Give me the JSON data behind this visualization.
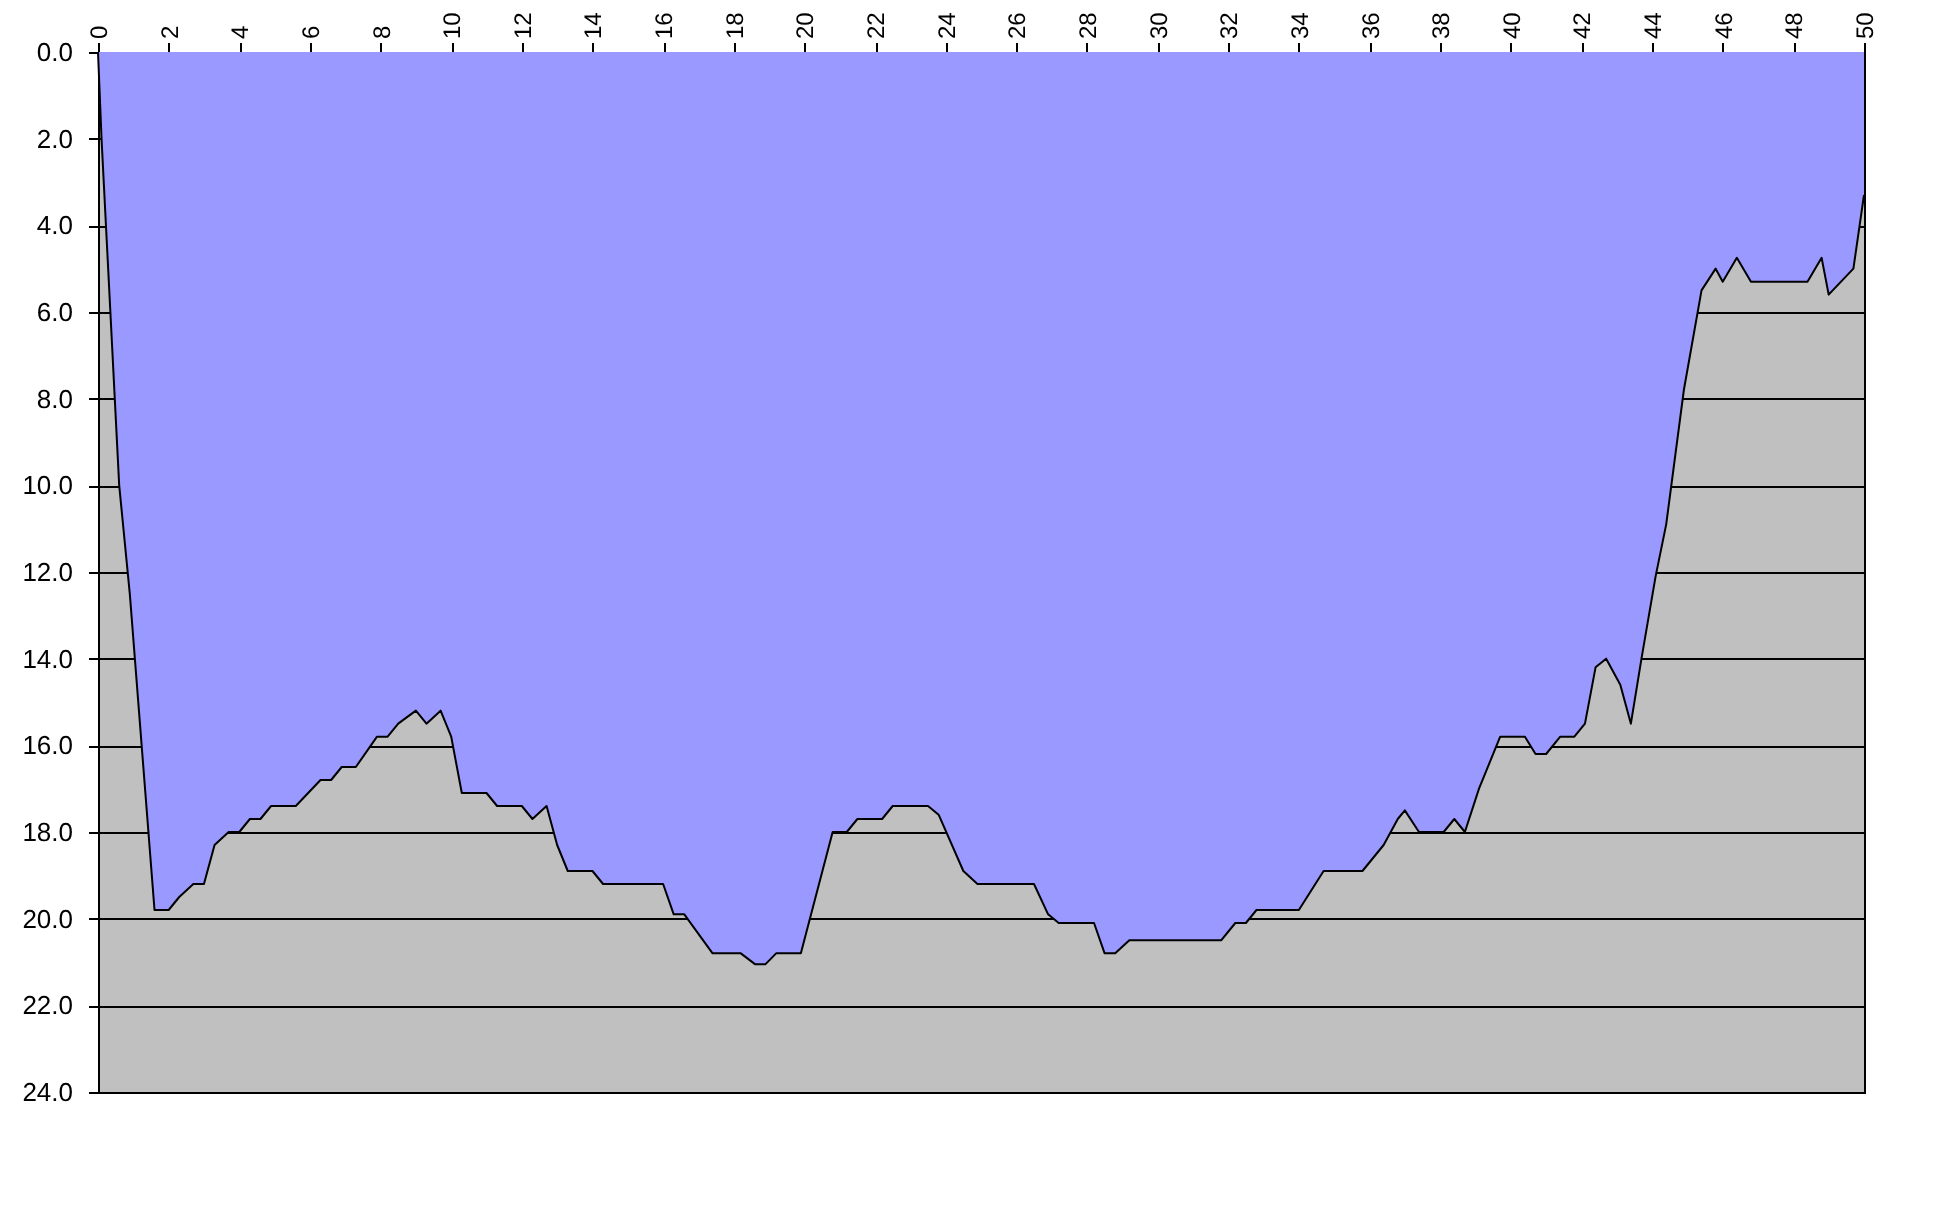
{
  "chart_data": {
    "type": "area",
    "x": [
      0,
      0.1,
      0.6,
      0.9,
      1.6,
      2.0,
      2.3,
      2.7,
      3.0,
      3.3,
      3.7,
      4.0,
      4.3,
      4.6,
      4.9,
      5.6,
      6.3,
      6.6,
      6.9,
      7.3,
      7.9,
      8.2,
      8.5,
      9.0,
      9.3,
      9.7,
      10.0,
      10.3,
      11.0,
      11.3,
      12.0,
      12.3,
      12.7,
      13.0,
      13.3,
      14.0,
      14.3,
      16.0,
      16.3,
      16.6,
      17.4,
      18.2,
      18.6,
      18.9,
      19.2,
      19.9,
      20.8,
      21.2,
      21.5,
      22.2,
      22.5,
      23.5,
      23.8,
      24.5,
      24.9,
      26.5,
      26.9,
      27.2,
      28.2,
      28.5,
      28.8,
      29.2,
      31.8,
      32.2,
      32.5,
      32.8,
      34.0,
      34.7,
      35.8,
      36.4,
      36.8,
      37.0,
      37.4,
      38.1,
      38.4,
      38.7,
      39.1,
      39.7,
      40.4,
      40.7,
      41.0,
      41.4,
      41.8,
      42.1,
      42.4,
      42.7,
      43.1,
      43.4,
      43.7,
      44.1,
      44.4,
      44.9,
      45.4,
      45.8,
      46.0,
      46.4,
      46.8,
      48.4,
      48.8,
      49.0,
      49.7,
      50.0
    ],
    "series": [
      {
        "color": "#9999ff",
        "values": [
          0,
          2,
          10,
          12.5,
          19.8,
          19.8,
          19.5,
          19.2,
          19.2,
          18.3,
          18.0,
          18.0,
          17.7,
          17.7,
          17.4,
          17.4,
          16.8,
          16.8,
          16.5,
          16.5,
          15.8,
          15.8,
          15.5,
          15.2,
          15.5,
          15.2,
          15.8,
          17.1,
          17.1,
          17.4,
          17.4,
          17.7,
          17.4,
          18.3,
          18.9,
          18.9,
          19.2,
          19.2,
          19.9,
          19.9,
          20.8,
          20.8,
          21.05,
          21.05,
          20.8,
          20.8,
          18.0,
          18.0,
          17.7,
          17.7,
          17.4,
          17.4,
          17.6,
          18.9,
          19.2,
          19.2,
          19.9,
          20.1,
          20.1,
          20.8,
          20.8,
          20.5,
          20.5,
          20.1,
          20.1,
          19.8,
          19.8,
          18.9,
          18.9,
          18.3,
          17.7,
          17.5,
          18.0,
          18.0,
          17.7,
          18.0,
          17.0,
          15.8,
          15.8,
          16.2,
          16.2,
          15.8,
          15.8,
          15.5,
          14.2,
          14.0,
          14.6,
          15.5,
          14.0,
          12.1,
          10.9,
          7.8,
          5.5,
          5.0,
          5.3,
          4.75,
          5.3,
          5.3,
          4.75,
          5.6,
          5.0,
          3.3
        ]
      }
    ],
    "xlim": [
      0,
      50
    ],
    "xticks": [
      0,
      2,
      4,
      6,
      8,
      10,
      12,
      14,
      16,
      18,
      20,
      22,
      24,
      26,
      28,
      30,
      32,
      34,
      36,
      38,
      40,
      42,
      44,
      46,
      48,
      50
    ],
    "ylim": [
      24,
      0
    ],
    "yticks": [
      {
        "value": 0,
        "label": "0.0"
      },
      {
        "value": 2,
        "label": "2.0"
      },
      {
        "value": 4,
        "label": "4.0"
      },
      {
        "value": 6,
        "label": "6.0"
      },
      {
        "value": 8,
        "label": "8.0"
      },
      {
        "value": 10,
        "label": "10.0"
      },
      {
        "value": 12,
        "label": "12.0"
      },
      {
        "value": 14,
        "label": "14.0"
      },
      {
        "value": 16,
        "label": "16.0"
      },
      {
        "value": 18,
        "label": "18.0"
      },
      {
        "value": 20,
        "label": "20.0"
      },
      {
        "value": 22,
        "label": "22.0"
      },
      {
        "value": 24,
        "label": "24.0"
      }
    ],
    "grid": "y",
    "marker": "none",
    "line_style": "solid"
  }
}
